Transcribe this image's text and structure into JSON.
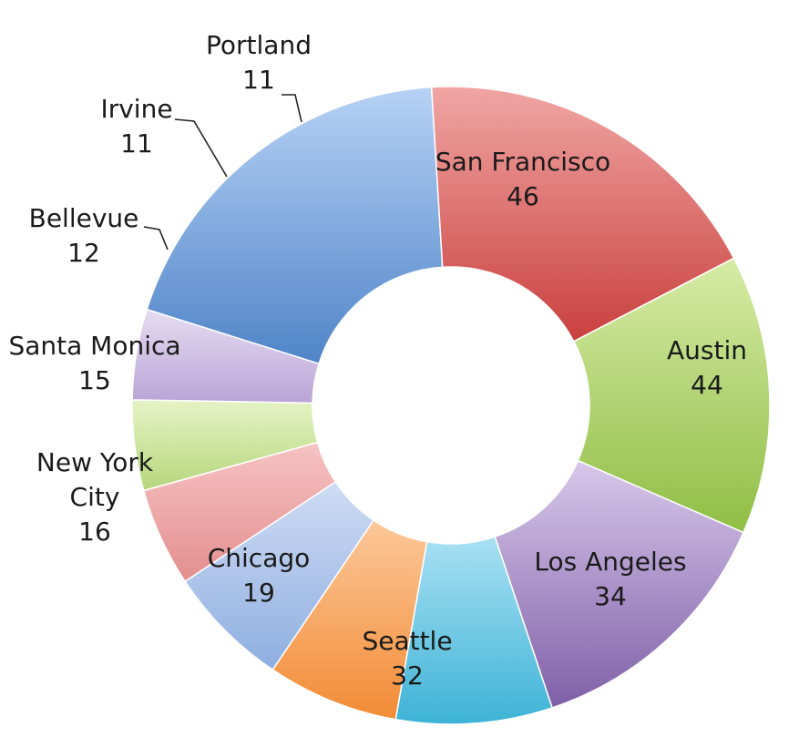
{
  "chart_data": {
    "type": "pie",
    "variant": "donut",
    "title": "",
    "legend": "none",
    "categories": [
      "San Francisco",
      "Austin",
      "Los Angeles",
      "Seattle",
      "Chicago",
      "New York City",
      "Santa Monica",
      "Bellevue",
      "Irvine",
      "Portland"
    ],
    "values": [
      46,
      44,
      34,
      32,
      19,
      16,
      15,
      12,
      11,
      11
    ],
    "label_lines": [
      [
        "San Francisco"
      ],
      [
        "Austin"
      ],
      [
        "Los Angeles"
      ],
      [
        "Seattle"
      ],
      [
        "Chicago"
      ],
      [
        "New York",
        "City"
      ],
      [
        "Santa Monica"
      ],
      [
        "Bellevue"
      ],
      [
        "Irvine"
      ],
      [
        "Portland"
      ]
    ],
    "colors": [
      [
        "#b7d2f5",
        "#4f84c8"
      ],
      [
        "#f0a6a4",
        "#c9403e"
      ],
      [
        "#d7eba6",
        "#8fbe45"
      ],
      [
        "#d8c8ea",
        "#7f5fa8"
      ],
      [
        "#a9e0f3",
        "#3db3d6"
      ],
      [
        "#fcc89a",
        "#f28b35"
      ],
      [
        "#cfdcf4",
        "#8eaee0"
      ],
      [
        "#f7c3c3",
        "#e38e8e"
      ],
      [
        "#e6f3c6",
        "#b6d67c"
      ],
      [
        "#e6dcf2",
        "#b9a5d6"
      ]
    ]
  }
}
